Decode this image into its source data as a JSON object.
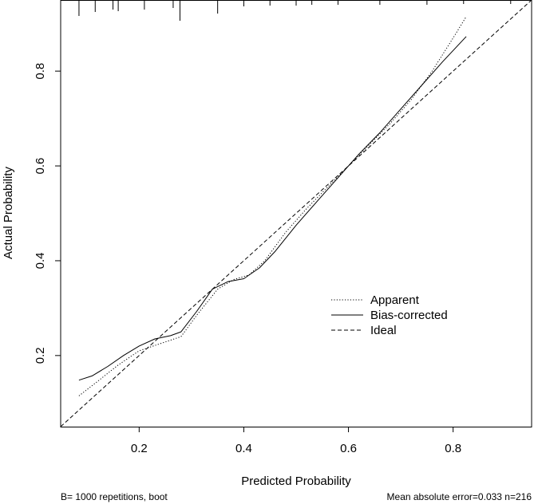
{
  "chart_data": {
    "type": "line",
    "title": "",
    "xlabel": "Predicted Probability",
    "ylabel": "Actual Probability",
    "xlim": [
      0.05,
      0.95
    ],
    "ylim": [
      0.05,
      0.95
    ],
    "x_ticks": [
      0.2,
      0.4,
      0.6,
      0.8
    ],
    "x_tick_labels": [
      "0.2",
      "0.4",
      "0.6",
      "0.8"
    ],
    "y_ticks": [
      0.2,
      0.4,
      0.6,
      0.8
    ],
    "y_tick_labels": [
      "0.2",
      "0.4",
      "0.6",
      "0.8"
    ],
    "grid": false,
    "legend_position": "lower-right",
    "series": [
      {
        "name": "Apparent",
        "line_style": "dotted",
        "x": [
          0.085,
          0.12,
          0.16,
          0.2,
          0.24,
          0.28,
          0.31,
          0.35,
          0.38,
          0.41,
          0.44,
          0.48,
          0.52,
          0.56,
          0.6,
          0.64,
          0.68,
          0.72,
          0.76,
          0.8,
          0.825
        ],
        "y": [
          0.115,
          0.145,
          0.18,
          0.21,
          0.225,
          0.24,
          0.285,
          0.34,
          0.36,
          0.37,
          0.4,
          0.46,
          0.51,
          0.555,
          0.6,
          0.645,
          0.69,
          0.74,
          0.8,
          0.87,
          0.915
        ]
      },
      {
        "name": "Bias-corrected",
        "line_style": "solid",
        "x": [
          0.085,
          0.11,
          0.14,
          0.17,
          0.2,
          0.23,
          0.26,
          0.28,
          0.31,
          0.34,
          0.37,
          0.4,
          0.43,
          0.46,
          0.5,
          0.54,
          0.58,
          0.62,
          0.66,
          0.7,
          0.74,
          0.78,
          0.825
        ],
        "y": [
          0.148,
          0.157,
          0.177,
          0.2,
          0.22,
          0.235,
          0.242,
          0.25,
          0.293,
          0.34,
          0.356,
          0.362,
          0.385,
          0.42,
          0.475,
          0.525,
          0.575,
          0.625,
          0.67,
          0.72,
          0.77,
          0.82,
          0.873
        ]
      },
      {
        "name": "Ideal",
        "line_style": "dashed",
        "x": [
          0.05,
          0.95
        ],
        "y": [
          0.05,
          0.95
        ]
      }
    ],
    "rug_x": [
      0.085,
      0.116,
      0.15,
      0.16,
      0.21,
      0.265,
      0.278,
      0.35,
      0.4,
      0.45,
      0.5,
      0.53,
      0.58,
      0.66,
      0.75,
      0.82,
      0.91
    ],
    "rug_heights": [
      20,
      15,
      12,
      14,
      12,
      10,
      26,
      17,
      8,
      7,
      7,
      6,
      6,
      6,
      6,
      5,
      5
    ],
    "footnote_left": "B= 1000 repetitions, boot",
    "footnote_right": "Mean absolute error=0.033 n=216"
  }
}
